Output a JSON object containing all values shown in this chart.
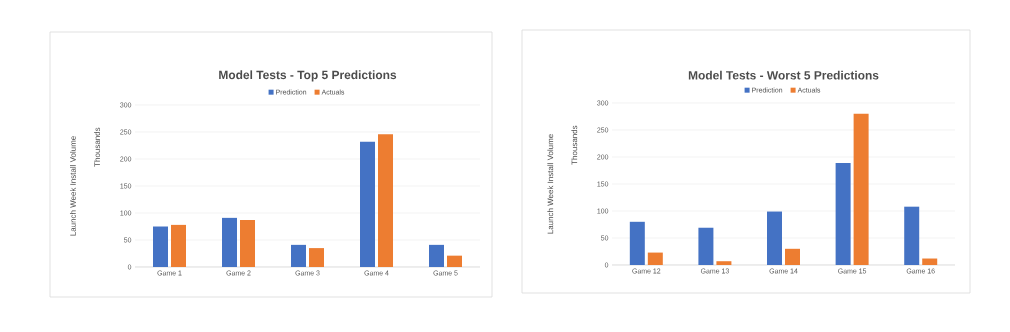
{
  "chart_data": [
    {
      "type": "bar",
      "title": "Model Tests - Top 5 Predictions",
      "ylabel": "Launch Week Install Volume",
      "annotations": [
        "Thousands"
      ],
      "categories": [
        "Game 1",
        "Game 2",
        "Game 3",
        "Game 4",
        "Game 5"
      ],
      "series": [
        {
          "name": "Prediction",
          "color": "#4472c4",
          "values": [
            75,
            91,
            41,
            232,
            41
          ]
        },
        {
          "name": "Actuals",
          "color": "#ed7d31",
          "values": [
            78,
            87,
            35,
            246,
            21
          ]
        }
      ],
      "ylim": [
        0,
        300
      ],
      "yticks": [
        0,
        50,
        100,
        150,
        200,
        250,
        300
      ],
      "grid": "y",
      "legend": "top"
    },
    {
      "type": "bar",
      "title": "Model Tests - Worst 5 Predictions",
      "ylabel": "Launch Week Install Volume",
      "annotations": [
        "Thousands"
      ],
      "categories": [
        "Game 12",
        "Game 13",
        "Game 14",
        "Game 15",
        "Game 16"
      ],
      "series": [
        {
          "name": "Prediction",
          "color": "#4472c4",
          "values": [
            80,
            69,
            99,
            189,
            108
          ]
        },
        {
          "name": "Actuals",
          "color": "#ed7d31",
          "values": [
            23,
            7,
            30,
            280,
            12
          ]
        }
      ],
      "ylim": [
        0,
        300
      ],
      "yticks": [
        0,
        50,
        100,
        150,
        200,
        250,
        300
      ],
      "grid": "y",
      "legend": "top"
    }
  ]
}
